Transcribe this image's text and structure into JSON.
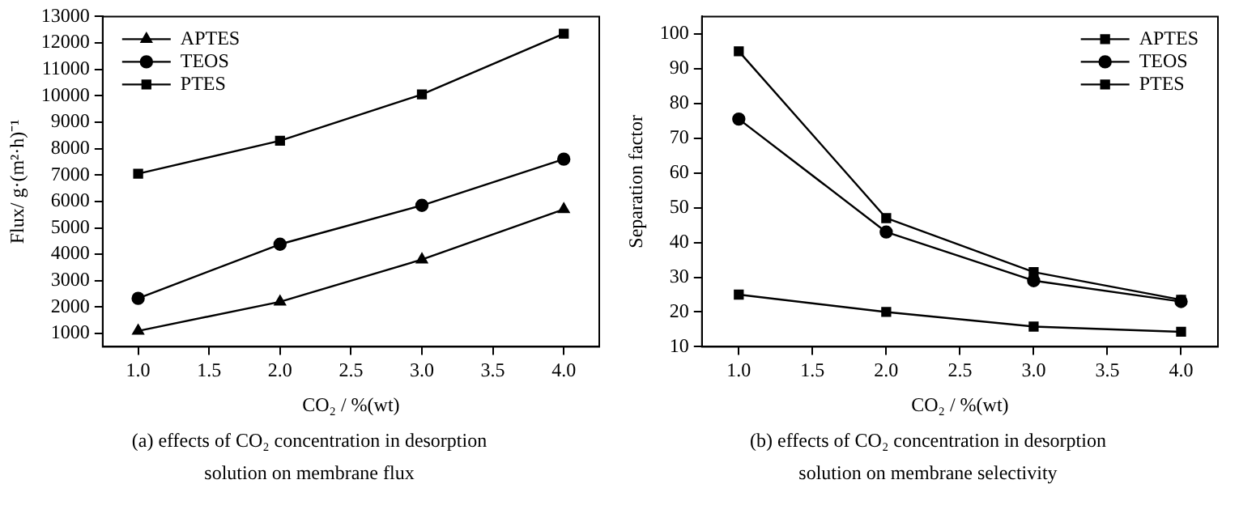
{
  "chart_data": [
    {
      "type": "line",
      "title": "(a) effects of CO₂ concentration in desorption solution on membrane flux",
      "xlabel": "CO₂ / %(wt)",
      "ylabel": "Flux/ g·(m²·h)⁻¹",
      "x": [
        1,
        2,
        3,
        4
      ],
      "series": [
        {
          "name": "APTES",
          "color": "#000000",
          "marker": "triangle",
          "values": [
            1100,
            2200,
            3800,
            5700
          ]
        },
        {
          "name": "TEOS",
          "color": "#000000",
          "marker": "circle",
          "values": [
            2330,
            4380,
            5850,
            7600
          ]
        },
        {
          "name": "PTES",
          "color": "#000000",
          "marker": "square",
          "values": [
            7050,
            8300,
            10050,
            12350
          ]
        }
      ],
      "xlim": [
        0.75,
        4.25
      ],
      "xticks": [
        {
          "value": 1,
          "label": "1.0"
        },
        {
          "value": 1.5,
          "label": "1.5"
        },
        {
          "value": 2,
          "label": "2.0"
        },
        {
          "value": 2.5,
          "label": "2.5"
        },
        {
          "value": 3,
          "label": "3.0"
        },
        {
          "value": 3.5,
          "label": "3.5"
        },
        {
          "value": 4,
          "label": "4.0"
        }
      ],
      "ylim": [
        500,
        13000
      ],
      "yticks": [
        1000,
        2000,
        3000,
        4000,
        5000,
        6000,
        7000,
        8000,
        9000,
        10000,
        11000,
        12000,
        13000
      ],
      "grid": false,
      "legend": "top left",
      "line_style": "solid"
    },
    {
      "type": "line",
      "title": "(b) effects of CO₂ concentration in desorption solution on membrane selectivity",
      "xlabel": "CO₂ / %(wt)",
      "ylabel": "Separation factor",
      "x": [
        1,
        2,
        3,
        4
      ],
      "series": [
        {
          "name": "APTES",
          "color": "#000000",
          "marker": "square",
          "values": [
            95,
            47,
            31.5,
            23.5
          ]
        },
        {
          "name": "TEOS",
          "color": "#000000",
          "marker": "circle",
          "values": [
            75.5,
            43,
            29,
            23
          ]
        },
        {
          "name": "PTES",
          "color": "#000000",
          "marker": "square",
          "values": [
            25,
            20,
            15.8,
            14.3
          ]
        }
      ],
      "xlim": [
        0.75,
        4.25
      ],
      "xticks": [
        {
          "value": 1,
          "label": "1.0"
        },
        {
          "value": 1.5,
          "label": "1.5"
        },
        {
          "value": 2,
          "label": "2.0"
        },
        {
          "value": 2.5,
          "label": "2.5"
        },
        {
          "value": 3,
          "label": "3.0"
        },
        {
          "value": 3.5,
          "label": "3.5"
        },
        {
          "value": 4,
          "label": "4.0"
        }
      ],
      "ylim": [
        10,
        105
      ],
      "yticks": [
        10,
        20,
        30,
        40,
        50,
        60,
        70,
        80,
        90,
        100
      ],
      "grid": false,
      "legend": "top right",
      "line_style": "solid"
    }
  ]
}
